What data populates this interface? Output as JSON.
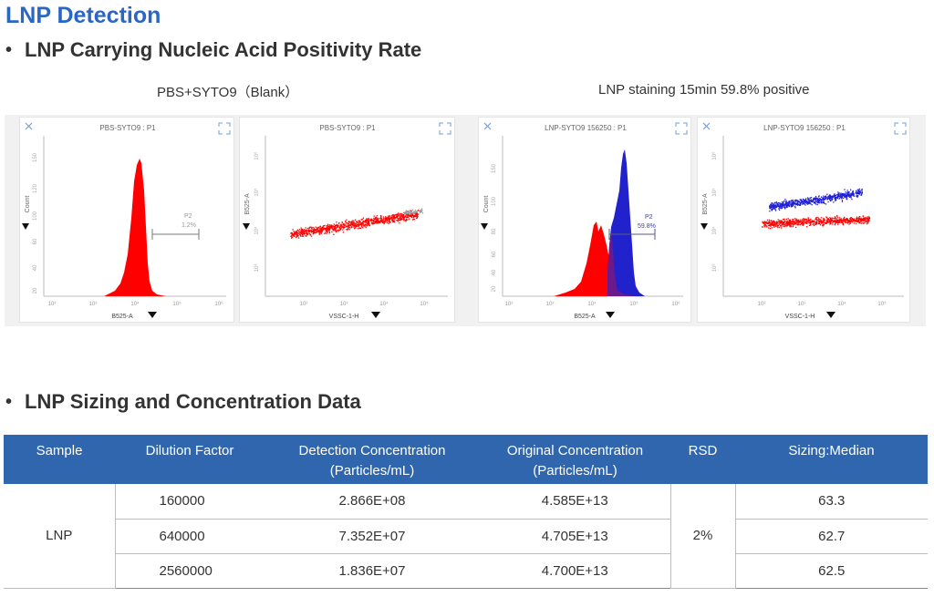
{
  "page_title": "LNP Detection",
  "section1": {
    "heading": "LNP Carrying Nucleic Acid Positivity Rate"
  },
  "section2": {
    "heading": "LNP Sizing and Concentration Data"
  },
  "captions": {
    "blank": "PBS+SYTO9（Blank）",
    "lnp": "LNP staining 15min 59.8% positive"
  },
  "plots": [
    {
      "title": "PBS-SYTO9 : P1",
      "xlabel": "B525-A",
      "ylabel": "Count",
      "gate_name": "P2",
      "gate_value": "1.2%"
    },
    {
      "title": "PBS-SYTO9 : P1",
      "xlabel": "VSSC-1-H",
      "ylabel": "B525-A"
    },
    {
      "title": "LNP-SYTO9 156250 : P1",
      "xlabel": "B525-A",
      "ylabel": "Count",
      "gate_name": "P2",
      "gate_value": "59.8%"
    },
    {
      "title": "LNP-SYTO9 156250 : P1",
      "xlabel": "VSSC-1-H",
      "ylabel": "B525-A"
    }
  ],
  "table": {
    "headers": {
      "sample": "Sample",
      "dilution": "Dilution Factor",
      "detection_1": "Detection Concentration",
      "detection_2": "(Particles/mL)",
      "original_1": "Original Concentration",
      "original_2": "(Particles/mL)",
      "rsd": "RSD",
      "sizing": "Sizing:Median"
    },
    "sample": "LNP",
    "rsd": "2%",
    "rows": [
      {
        "dilution": "160000",
        "detection": "2.866E+08",
        "original": "4.585E+13",
        "sizing": "63.3"
      },
      {
        "dilution": "640000",
        "detection": "7.352E+07",
        "original": "4.705E+13",
        "sizing": "62.7"
      },
      {
        "dilution": "2560000",
        "detection": "1.836E+07",
        "original": "4.700E+13",
        "sizing": "62.5"
      }
    ]
  },
  "colors": {
    "title_blue": "#2a67c4",
    "table_header": "#2f66ae",
    "negative_red": "#ff0000",
    "positive_blue": "#1f1fd6",
    "overlap_purple": "#6a1a8a",
    "gate_blue": "#3b3bd0",
    "gate_gray": "#9a9a9a"
  }
}
